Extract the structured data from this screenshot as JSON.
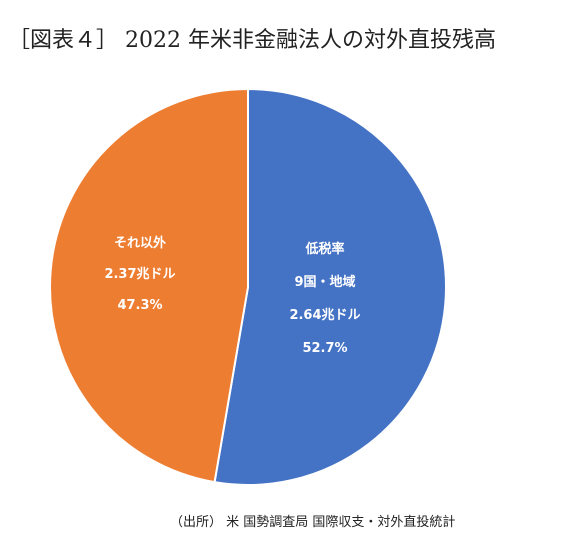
{
  "title": "［図表４］ 2022 年米非金融法人の対外直投残高",
  "source": "（出所） 米 国勢調査局 国際収支・対外直投統計",
  "chart_data": {
    "type": "pie",
    "title": "［図表４］ 2022 年米非金融法人の対外直投残高",
    "slices": [
      {
        "name": "低税率",
        "lines": [
          "低税率",
          "9国・地域",
          "2.64兆ドル",
          "52.7%"
        ],
        "value": 2.64,
        "percent": 52.7,
        "color": "#4472C4"
      },
      {
        "name": "それ以外",
        "lines": [
          "それ以外",
          "2.37兆ドル",
          "47.3%"
        ],
        "value": 2.37,
        "percent": 47.3,
        "color": "#ED7D31"
      }
    ]
  }
}
